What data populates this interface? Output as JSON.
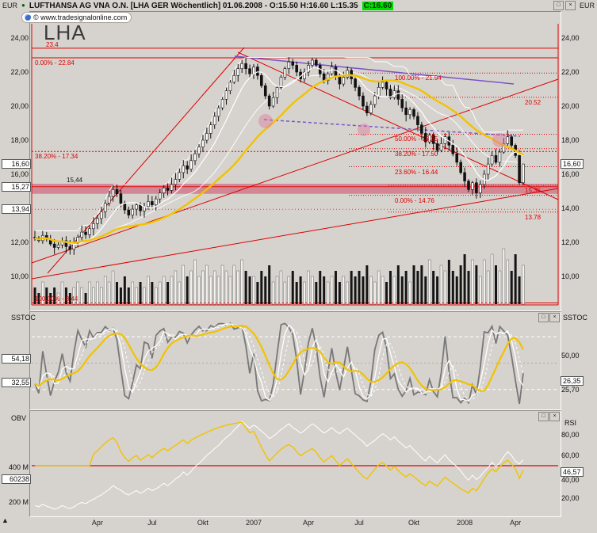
{
  "window": {
    "left_currency": "EUR",
    "right_currency": "EUR",
    "bullet": "●",
    "title": "LUFTHANSA AG VNA O.N. [LHA GER  Wöchentlich] 01.06.2008 - O:15.50 H:16.60 L:15.35",
    "close_badge": "C:16.60",
    "copyright": "© www.tradesignalonline.com",
    "buttons": {
      "restore": "□",
      "close": "×"
    }
  },
  "panels": {
    "main": {
      "watermark": "LHA"
    },
    "sstoc": {
      "label": "SSTOC",
      "right_header": "SSTOC"
    },
    "obv": {
      "label": "OBV",
      "right_header": "RSI"
    }
  },
  "axes": {
    "price_ticks": [
      {
        "label": "24,00",
        "price": 24.0
      },
      {
        "label": "22,00",
        "price": 22.0
      },
      {
        "label": "20,00",
        "price": 20.0
      },
      {
        "label": "18,00",
        "price": 18.0
      },
      {
        "label": "16,00",
        "price": 16.0
      },
      {
        "label": "14,00",
        "price": 14.0
      },
      {
        "label": "12,00",
        "price": 12.0
      },
      {
        "label": "10,00",
        "price": 10.0
      }
    ],
    "price_boxes_left": [
      {
        "label": "16,60",
        "price": 16.6
      },
      {
        "label": "15,27",
        "price": 15.27
      },
      {
        "label": "13,94",
        "price": 13.94
      }
    ],
    "price_boxes_right": [
      {
        "label": "16,60",
        "price": 16.6
      }
    ],
    "inline_note": {
      "label": "15,44",
      "price": 15.44
    },
    "time_ticks": [
      {
        "label": "Apr",
        "i": 16
      },
      {
        "label": "Jul",
        "i": 30
      },
      {
        "label": "Okt",
        "i": 43
      },
      {
        "label": "2007",
        "i": 56
      },
      {
        "label": "Apr",
        "i": 70
      },
      {
        "label": "Jul",
        "i": 83
      },
      {
        "label": "Okt",
        "i": 97
      },
      {
        "label": "2008",
        "i": 110
      },
      {
        "label": "Apr",
        "i": 123
      }
    ],
    "sstoc_left": [
      {
        "label": "54,18",
        "y": 447,
        "boxed": true
      },
      {
        "label": "32,55",
        "y": 477,
        "boxed": true
      }
    ],
    "sstoc_right": [
      {
        "label": "50,00",
        "y": 444,
        "boxed": false
      },
      {
        "label": "26,35",
        "y": 475,
        "boxed": true
      },
      {
        "label": "25,70",
        "y": 487,
        "boxed": false
      }
    ],
    "obv_left": [
      {
        "label": "400 M",
        "y": 585,
        "boxed": false
      },
      {
        "label": "60238",
        "y": 599,
        "boxed": true
      },
      {
        "label": "200 M",
        "y": 629,
        "boxed": false
      }
    ],
    "rsi_right": [
      {
        "label": "80,00",
        "y": 544,
        "boxed": false
      },
      {
        "label": "60,00",
        "y": 570,
        "boxed": false
      },
      {
        "label": "46,57",
        "y": 590,
        "boxed": true
      },
      {
        "label": "40,00",
        "y": 601,
        "boxed": false
      },
      {
        "label": "20,00",
        "y": 624,
        "boxed": false
      }
    ]
  },
  "chart_data": [
    {
      "type": "candlestick",
      "title": "LHA GER Wöchentlich",
      "ylabel": "EUR",
      "ylim": [
        8.0,
        25.5
      ],
      "x_labels": [
        "Apr",
        "Jul",
        "Okt",
        "2007",
        "Apr",
        "Jul",
        "Okt",
        "2008",
        "Apr"
      ],
      "first_open": 12.3,
      "closes": [
        12.25,
        12.1,
        12.4,
        12.2,
        11.9,
        11.7,
        11.85,
        12.1,
        11.75,
        11.6,
        11.95,
        12.3,
        12.6,
        12.45,
        12.8,
        13.1,
        13.4,
        13.8,
        14.3,
        14.7,
        15.1,
        14.85,
        14.3,
        13.9,
        13.6,
        13.95,
        14.2,
        13.85,
        14.1,
        14.4,
        14.2,
        14.55,
        14.9,
        15.2,
        15.05,
        15.4,
        15.7,
        16.1,
        16.5,
        16.3,
        16.8,
        17.2,
        17.6,
        18.0,
        18.4,
        18.9,
        19.4,
        19.9,
        20.4,
        20.9,
        21.4,
        21.8,
        22.2,
        22.5,
        22.2,
        21.9,
        22.3,
        21.8,
        21.2,
        20.6,
        20.0,
        20.5,
        21.1,
        21.7,
        22.2,
        22.6,
        22.4,
        22.0,
        21.6,
        22.0,
        22.4,
        22.7,
        22.4,
        21.9,
        21.5,
        21.9,
        22.3,
        21.8,
        21.3,
        21.7,
        22.1,
        21.6,
        21.1,
        20.6,
        20.0,
        19.6,
        20.1,
        20.6,
        21.1,
        21.4,
        21.0,
        20.5,
        20.9,
        20.4,
        19.9,
        19.5,
        19.8,
        19.4,
        18.9,
        18.4,
        17.9,
        18.3,
        17.8,
        17.4,
        17.8,
        18.2,
        17.7,
        17.2,
        16.7,
        16.1,
        15.6,
        15.1,
        15.5,
        14.9,
        15.4,
        16.0,
        16.6,
        17.1,
        16.7,
        17.3,
        17.8,
        18.2,
        17.7,
        17.1,
        15.5,
        16.6
      ],
      "volumes": [
        3,
        2,
        4,
        3,
        2,
        3,
        2,
        4,
        3,
        2,
        3,
        4,
        3,
        2,
        4,
        3,
        4,
        3,
        5,
        4,
        6,
        4,
        3,
        5,
        3,
        4,
        3,
        4,
        3,
        5,
        4,
        3,
        4,
        5,
        4,
        5,
        6,
        4,
        7,
        5,
        6,
        8,
        5,
        6,
        7,
        5,
        6,
        5,
        7,
        6,
        5,
        7,
        6,
        8,
        6,
        5,
        5,
        4,
        6,
        5,
        7,
        4,
        5,
        6,
        4,
        5,
        6,
        4,
        5,
        4,
        6,
        5,
        4,
        6,
        5,
        4,
        5,
        6,
        4,
        5,
        4,
        6,
        5,
        6,
        5,
        7,
        5,
        4,
        6,
        5,
        4,
        6,
        5,
        7,
        5,
        6,
        4,
        7,
        6,
        7,
        5,
        8,
        6,
        5,
        7,
        6,
        8,
        6,
        5,
        7,
        9,
        6,
        8,
        7,
        5,
        8,
        6,
        9,
        7,
        6,
        10,
        8,
        6,
        9,
        5,
        7
      ],
      "last_candle": {
        "open": 15.5,
        "high": 16.6,
        "low": 15.35,
        "close": 16.6
      },
      "overlays": {
        "ma_fast": 8,
        "ma_mid": 20,
        "ma_slow": 30,
        "roll_high": 15
      },
      "hline_top": {
        "label": "23.4",
        "price": 23.4
      },
      "fib_left": {
        "levels": [
          {
            "pct": "0.00%",
            "price": 22.84
          },
          {
            "pct": "38.20%",
            "price": 17.34
          },
          {
            "pct": "100.00%",
            "price": 8.44
          }
        ]
      },
      "fib_right": {
        "levels": [
          {
            "pct": "100.00%",
            "price": 21.94
          },
          {
            "pct": "50.00%",
            "price": 18.35
          },
          {
            "pct": "38.20%",
            "price": 17.5
          },
          {
            "pct": "23.60%",
            "price": 16.44
          },
          {
            "pct": "0.00%",
            "price": 14.76
          }
        ]
      },
      "price_markers": [
        {
          "price": 20.52
        },
        {
          "price": 15.35
        },
        {
          "price": 13.78
        }
      ],
      "extra_dotted": [
        13.94
      ],
      "band": {
        "top": 15.44,
        "bottom": 14.85,
        "mid": 15.27
      },
      "trendlines": [
        {
          "x1": 40,
          "y1": 332,
          "x2": 704,
          "y2": 100
        },
        {
          "x1": 40,
          "y1": 352,
          "x2": 704,
          "y2": 238
        },
        {
          "x1": 60,
          "y1": 345,
          "x2": 308,
          "y2": 60
        },
        {
          "x1": 300,
          "y1": 66,
          "x2": 704,
          "y2": 252
        }
      ],
      "purple_lines": [
        {
          "x1": 296,
          "y1": 71,
          "x2": 648,
          "y2": 106,
          "dashed": false
        },
        {
          "x1": 333,
          "y1": 151,
          "x2": 656,
          "y2": 172,
          "dashed": true
        }
      ],
      "circles": [
        {
          "x": 335,
          "y": 153,
          "r": 9
        },
        {
          "x": 459,
          "y": 164,
          "r": 8
        },
        {
          "x": 630,
          "y": 177,
          "r": 9
        }
      ]
    },
    {
      "type": "line",
      "name": "SSTOC",
      "range": [
        0,
        100
      ],
      "guide_levels": [
        80,
        50,
        20
      ],
      "left_values": [
        54.18,
        32.55
      ],
      "right_values": [
        50.0,
        26.35,
        25.7
      ],
      "derived": "stochastic of weekly closes (K5, D3, signal 8)"
    },
    {
      "type": "line",
      "name": "OBV_RSI",
      "obv_axis_labels": [
        "400 M",
        "200 M"
      ],
      "obv_value": "60238",
      "rsi_axis": [
        80,
        60,
        40,
        20
      ],
      "rsi_value": 46.57,
      "rsi_midline": 50,
      "derived": "OBV from volumes; RSI(14) from closes"
    }
  ],
  "colors": {
    "red": "#dd0000",
    "yellow": "#f2c200",
    "purple": "#7a52c8",
    "pink_band": "rgba(205,60,90,0.5)",
    "pink_circle": "rgba(224,120,155,0.45)",
    "green_badge": "#00dc00",
    "bg": "#d6d3ce",
    "white_line": "#ffffff",
    "gray_line": "#787878"
  }
}
